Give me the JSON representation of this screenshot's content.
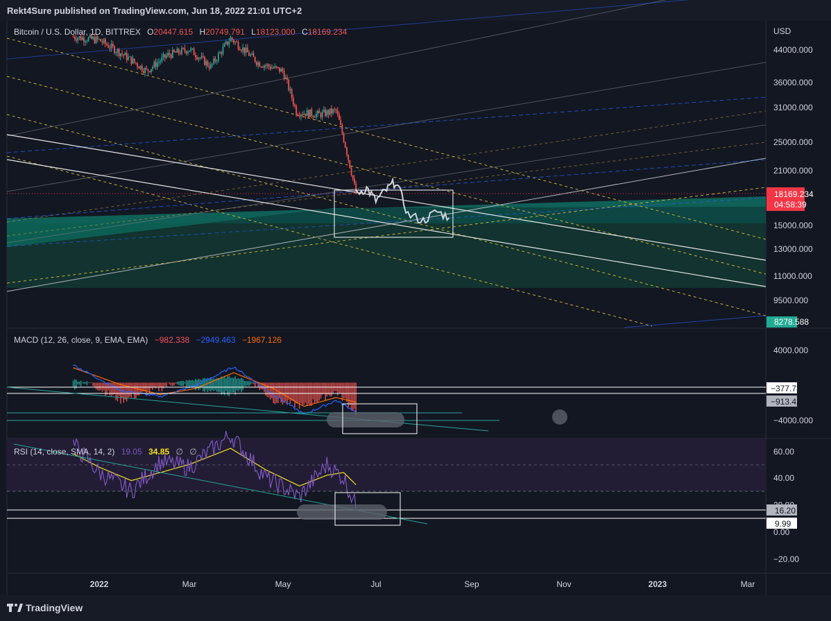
{
  "header": {
    "published": "Rekt4Sure published on TradingView.com, Jun 18, 2022 21:01 UTC+2"
  },
  "price_pane": {
    "symbol": "Bitcoin / U.S. Dollar, 1D, BITTREX",
    "ohlc": [
      {
        "label": "O",
        "value": "20447.615"
      },
      {
        "label": "H",
        "value": "20749.791"
      },
      {
        "label": "L",
        "value": "18123.000"
      },
      {
        "label": "C",
        "value": "18169.234"
      }
    ],
    "currency": "USD",
    "axis_ticks": [
      "44000.000",
      "36000.000",
      "31000.000",
      "25000.000",
      "21000.000",
      "15000.000",
      "13000.000",
      "11000.000",
      "9500.000"
    ],
    "last_price": "18169.234",
    "countdown": "04:58:39",
    "target_price": "8278.588",
    "colors": {
      "up": "#26a69a",
      "down": "#ef5350",
      "last_price": "#f23645",
      "target": "#22ab94",
      "zone": "#0f7a68"
    }
  },
  "macd_pane": {
    "title": "MACD (12, 26, close, 9, EMA, EMA)",
    "values": [
      "−982.338",
      "−2949.463",
      "−1967.126"
    ],
    "value_colors": [
      "#f7525f",
      "#2962ff",
      "#ff6d00"
    ],
    "axis_ticks": [
      "4000.000",
      "−4000.000"
    ],
    "level_labels": [
      "−377.735",
      "−913.429"
    ]
  },
  "rsi_pane": {
    "title": "RSI (14, close, SMA, 14, 2)",
    "values": [
      "19.05",
      "34.85",
      "∅",
      "∅"
    ],
    "value_colors": [
      "#7e57c2",
      "#f7e21c",
      "#b2b5be",
      "#b2b5be"
    ],
    "axis_ticks": [
      "60.00",
      "40.00",
      "20.00",
      "0.00",
      "−20.00"
    ],
    "level_labels": [
      "16.20",
      "9.99"
    ]
  },
  "time_axis": [
    "2022",
    "Mar",
    "May",
    "Jul",
    "Sep",
    "Nov",
    "2023",
    "Mar"
  ],
  "footer": {
    "logo_text": "TradingView"
  },
  "chart_data": [
    {
      "type": "candlestick",
      "title": "Bitcoin / U.S. Dollar, 1D, BITTREX",
      "ylabel": "USD",
      "log_scale": true,
      "ylim": [
        8000,
        52000
      ],
      "x": [
        "2021-12-15",
        "2022-01-01",
        "2022-01-15",
        "2022-02-01",
        "2022-02-15",
        "2022-03-01",
        "2022-03-15",
        "2022-03-28",
        "2022-04-15",
        "2022-05-01",
        "2022-05-10",
        "2022-05-25",
        "2022-06-05",
        "2022-06-13",
        "2022-06-18"
      ],
      "close": [
        47500,
        46500,
        43000,
        38500,
        42500,
        44000,
        39500,
        47000,
        40500,
        38500,
        30000,
        29500,
        30200,
        22500,
        18169
      ],
      "projection_path_dates": [
        "2022-06-18",
        "2022-06-25",
        "2022-07-01",
        "2022-07-08",
        "2022-07-14",
        "2022-07-22",
        "2022-08-01",
        "2022-08-10",
        "2022-08-18"
      ],
      "projection_path_values": [
        18200,
        18800,
        17400,
        18600,
        19600,
        16000,
        15400,
        16300,
        15700
      ],
      "zone": {
        "top": 15200,
        "bottom": 10300
      }
    },
    {
      "type": "line",
      "title": "MACD (12, 26, close, 9, EMA, EMA)",
      "series": [
        {
          "name": "MACD",
          "x": [
            "2021-12-15",
            "2022-01-15",
            "2022-02-10",
            "2022-03-05",
            "2022-03-30",
            "2022-04-25",
            "2022-05-15",
            "2022-06-05",
            "2022-06-18"
          ],
          "values": [
            1800,
            -800,
            -1400,
            -300,
            1600,
            -1200,
            -3200,
            -1800,
            -2949
          ]
        },
        {
          "name": "Signal",
          "x": [
            "2021-12-15",
            "2022-01-15",
            "2022-02-10",
            "2022-03-05",
            "2022-03-30",
            "2022-04-25",
            "2022-05-15",
            "2022-06-05",
            "2022-06-18"
          ],
          "values": [
            1500,
            -200,
            -1200,
            -600,
            1000,
            -600,
            -2400,
            -1500,
            -1967
          ]
        }
      ],
      "ylim": [
        -5500,
        5000
      ]
    },
    {
      "type": "line",
      "title": "RSI (14, close, SMA, 14, 2)",
      "series": [
        {
          "name": "RSI",
          "x": [
            "2021-12-15",
            "2022-01-01",
            "2022-01-22",
            "2022-02-10",
            "2022-03-01",
            "2022-03-28",
            "2022-04-20",
            "2022-05-12",
            "2022-05-30",
            "2022-06-10",
            "2022-06-18"
          ],
          "values": [
            65,
            44,
            30,
            52,
            48,
            72,
            40,
            26,
            50,
            40,
            19.05
          ]
        },
        {
          "name": "RSI-based MA",
          "x": [
            "2021-12-15",
            "2022-01-01",
            "2022-01-22",
            "2022-02-10",
            "2022-03-01",
            "2022-03-28",
            "2022-04-20",
            "2022-05-12",
            "2022-05-30",
            "2022-06-10",
            "2022-06-18"
          ],
          "values": [
            58,
            48,
            38,
            44,
            50,
            62,
            46,
            34,
            42,
            44,
            34.85
          ]
        }
      ],
      "ylim": [
        -28,
        68
      ]
    }
  ]
}
